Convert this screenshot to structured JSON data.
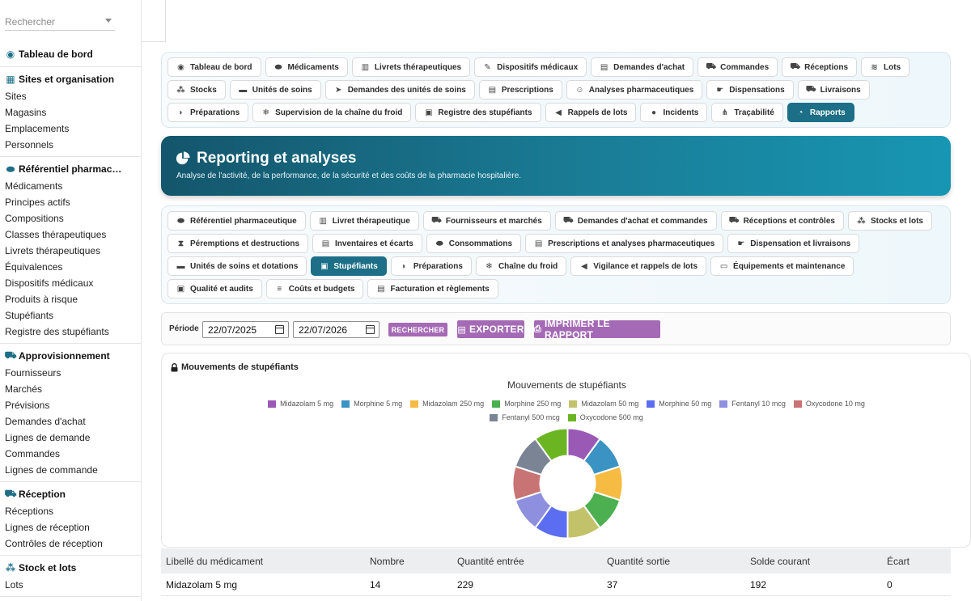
{
  "sidebar": {
    "search": {
      "placeholder": "Rechercher"
    },
    "sections": [
      {
        "title": "Tableau de bord",
        "icon": "dashboard-icon",
        "items": []
      },
      {
        "title": "Sites et organisation",
        "icon": "building-icon",
        "items": [
          "Sites",
          "Magasins",
          "Emplacements",
          "Personnels"
        ]
      },
      {
        "title": "Référentiel pharmac…",
        "icon": "pills-icon",
        "items": [
          "Médicaments",
          "Principes actifs",
          "Compositions",
          "Classes thérapeutiques",
          "Livrets thérapeutiques",
          "Équivalences",
          "Dispositifs médicaux",
          "Produits à risque",
          "Stupéfiants",
          "Registre des stupéfiants"
        ]
      },
      {
        "title": "Approvisionnement",
        "icon": "cart-icon",
        "items": [
          "Fournisseurs",
          "Marchés",
          "Prévisions",
          "Demandes d'achat",
          "Lignes de demande",
          "Commandes",
          "Lignes de commande"
        ]
      },
      {
        "title": "Réception",
        "icon": "truck-icon",
        "items": [
          "Réceptions",
          "Lignes de réception",
          "Contrôles de réception"
        ]
      },
      {
        "title": "Stock et lots",
        "icon": "boxes-icon",
        "items": [
          "Lots"
        ]
      }
    ]
  },
  "top_tabs": [
    {
      "label": "Tableau de bord",
      "icon": "dashboard-icon",
      "glyph": "◉"
    },
    {
      "label": "Médicaments",
      "icon": "pills-icon",
      "glyph": "⬬"
    },
    {
      "label": "Livrets thérapeutiques",
      "icon": "book-icon",
      "glyph": "▥"
    },
    {
      "label": "Dispositifs médicaux",
      "icon": "syringe-icon",
      "glyph": "✎"
    },
    {
      "label": "Demandes d'achat",
      "icon": "file-icon",
      "glyph": "▤"
    },
    {
      "label": "Commandes",
      "icon": "cart-icon",
      "glyph": "⛟"
    },
    {
      "label": "Réceptions",
      "icon": "truck-icon",
      "glyph": "⛟"
    },
    {
      "label": "Lots",
      "icon": "layers-icon",
      "glyph": "≋"
    },
    {
      "label": "Stocks",
      "icon": "boxes-icon",
      "glyph": "⁂"
    },
    {
      "label": "Unités de soins",
      "icon": "bed-icon",
      "glyph": "▬"
    },
    {
      "label": "Demandes des unités de soins",
      "icon": "send-icon",
      "glyph": "➤"
    },
    {
      "label": "Prescriptions",
      "icon": "prescription-icon",
      "glyph": "▤"
    },
    {
      "label": "Analyses pharmaceutiques",
      "icon": "user-doctor-icon",
      "glyph": "☺"
    },
    {
      "label": "Dispensations",
      "icon": "hand-icon",
      "glyph": "☛"
    },
    {
      "label": "Livraisons",
      "icon": "delivery-icon",
      "glyph": "⛟"
    },
    {
      "label": "Préparations",
      "icon": "mortar-icon",
      "glyph": "◗"
    },
    {
      "label": "Supervision de la chaîne du froid",
      "icon": "snowflake-icon",
      "glyph": "❄"
    },
    {
      "label": "Registre des stupéfiants",
      "icon": "lock-icon",
      "glyph": "▣"
    },
    {
      "label": "Rappels de lots",
      "icon": "bullhorn-icon",
      "glyph": "◀"
    },
    {
      "label": "Incidents",
      "icon": "alert-icon",
      "glyph": "●"
    },
    {
      "label": "Traçabilité",
      "icon": "sitemap-icon",
      "glyph": "⋔"
    },
    {
      "label": "Rapports",
      "icon": "chart-pie-icon",
      "glyph": "◔",
      "active": true
    }
  ],
  "hero": {
    "title": "Reporting et analyses",
    "subtitle": "Analyse de l'activité, de la performance, de la sécurité et des coûts de la pharmacie hospitalière."
  },
  "report_tabs": [
    {
      "label": "Référentiel pharmaceutique",
      "icon": "pills-icon",
      "glyph": "⬬"
    },
    {
      "label": "Livret thérapeutique",
      "icon": "book-icon",
      "glyph": "▥"
    },
    {
      "label": "Fournisseurs et marchés",
      "icon": "truck-icon",
      "glyph": "⛟"
    },
    {
      "label": "Demandes d'achat et commandes",
      "icon": "cart-icon",
      "glyph": "⛟"
    },
    {
      "label": "Réceptions et contrôles",
      "icon": "truck-ramp-icon",
      "glyph": "⛟"
    },
    {
      "label": "Stocks et lots",
      "icon": "boxes-icon",
      "glyph": "⁂"
    },
    {
      "label": "Péremptions et destructions",
      "icon": "hourglass-icon",
      "glyph": "⧗"
    },
    {
      "label": "Inventaires et écarts",
      "icon": "clipboard-icon",
      "glyph": "▤"
    },
    {
      "label": "Consommations",
      "icon": "pills-icon",
      "glyph": "⬬"
    },
    {
      "label": "Prescriptions et analyses pharmaceutiques",
      "icon": "prescription-icon",
      "glyph": "▤"
    },
    {
      "label": "Dispensation et livraisons",
      "icon": "hand-icon",
      "glyph": "☛"
    },
    {
      "label": "Unités de soins et dotations",
      "icon": "bed-icon",
      "glyph": "▬"
    },
    {
      "label": "Stupéfiants",
      "icon": "lock-icon",
      "glyph": "▣",
      "active": true
    },
    {
      "label": "Préparations",
      "icon": "mortar-icon",
      "glyph": "◗"
    },
    {
      "label": "Chaîne du froid",
      "icon": "snowflake-icon",
      "glyph": "❄"
    },
    {
      "label": "Vigilance et rappels de lots",
      "icon": "bullhorn-icon",
      "glyph": "◀"
    },
    {
      "label": "Équipements et maintenance",
      "icon": "monitor-icon",
      "glyph": "▭"
    },
    {
      "label": "Qualité et audits",
      "icon": "clipboard-check-icon",
      "glyph": "▣"
    },
    {
      "label": "Coûts et budgets",
      "icon": "coins-icon",
      "glyph": "≡"
    },
    {
      "label": "Facturation et règlements",
      "icon": "invoice-icon",
      "glyph": "▤"
    }
  ],
  "filters": {
    "period_label": "Période",
    "date_from": "22/07/2025",
    "date_to": "22/07/2026",
    "search_label": "RECHERCHER",
    "export_label": "EXPORTER",
    "print_label": "IMPRIMER LE RAPPORT"
  },
  "card": {
    "title": "Mouvements de stupéfiants"
  },
  "chart_data": {
    "type": "pie",
    "title": "Mouvements de stupéfiants",
    "categories": [
      "Midazolam 5 mg",
      "Morphine 5 mg",
      "Midazolam 250 mg",
      "Morphine 250 mg",
      "Midazolam 50 mg",
      "Morphine 50 mg",
      "Fentanyl 10 mcg",
      "Oxycodone 10 mg",
      "Fentanyl 500 mcg",
      "Oxycodone 500 mg"
    ],
    "values": [
      1,
      1,
      1,
      1,
      1,
      1,
      1,
      1,
      1,
      1
    ],
    "colors": [
      "#9b59b6",
      "#3a93c3",
      "#f6bb42",
      "#4caf50",
      "#c2c26a",
      "#5b6df0",
      "#8f8fe0",
      "#c97474",
      "#7b8494",
      "#6bb523"
    ],
    "legend": "top",
    "donut": true
  },
  "table": {
    "headers": [
      "Libellé du médicament",
      "Nombre",
      "Quantité entrée",
      "Quantité sortie",
      "Solde courant",
      "Écart"
    ],
    "rows": [
      [
        "Midazolam 5 mg",
        "14",
        "229",
        "37",
        "192",
        "0"
      ]
    ]
  }
}
